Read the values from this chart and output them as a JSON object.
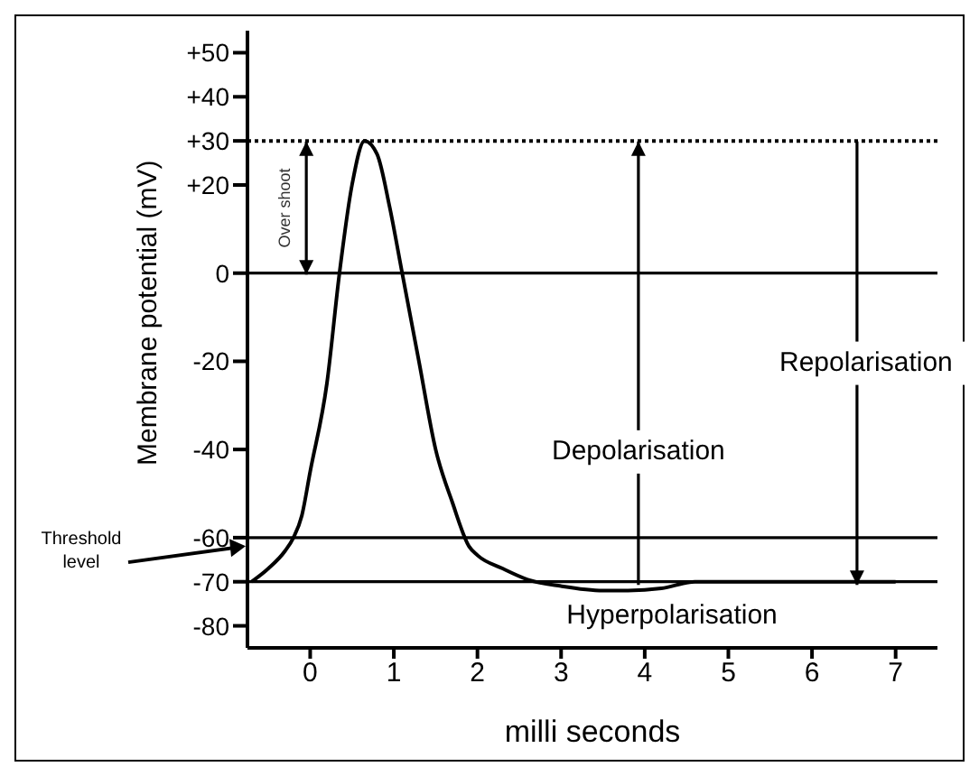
{
  "chart_data": {
    "type": "line",
    "xlabel": "milli seconds",
    "ylabel": "Membrane potential (mV)",
    "xlim": [
      -0.75,
      7.5
    ],
    "xticks": [
      0,
      1,
      2,
      3,
      4,
      5,
      6,
      7
    ],
    "ylim": [
      -85,
      55
    ],
    "yticks": [
      {
        "value": 50,
        "label": "+50"
      },
      {
        "value": 40,
        "label": "+40"
      },
      {
        "value": 30,
        "label": "+30"
      },
      {
        "value": 20,
        "label": "+20"
      },
      0,
      -20,
      -40,
      -60,
      -70,
      -80
    ],
    "marker": "none",
    "line_style": "solid",
    "series": [
      {
        "color": "#000000",
        "x": [
          -0.7,
          -0.5,
          -0.3,
          -0.2,
          -0.1,
          0,
          0.2,
          0.35,
          0.5,
          0.65,
          0.8,
          0.95,
          1.1,
          1.3,
          1.5,
          1.7,
          1.9,
          2.0,
          2.3,
          2.6,
          3.0,
          3.5,
          3.8,
          4.2,
          4.6,
          5.0,
          7.0
        ],
        "values": [
          -70,
          -67,
          -63,
          -60,
          -55,
          -45,
          -25,
          0,
          20,
          30,
          27,
          15,
          0,
          -20,
          -40,
          -52,
          -62,
          -64,
          -67,
          -69.5,
          -71,
          -72,
          -72,
          -71.5,
          -70,
          -70,
          -70
        ]
      }
    ],
    "ref_lines": [
      {
        "axis": "y",
        "value": 30,
        "line_style": "dotted",
        "color": "#000000"
      },
      {
        "axis": "y",
        "value": 0,
        "color": "#000000"
      },
      {
        "axis": "y",
        "value": -60,
        "label": "Threshold level",
        "color": "#000000"
      },
      {
        "axis": "y",
        "value": -70,
        "color": "#000000"
      }
    ],
    "annotations": [
      "Over shoot",
      "Depolarisation",
      "Repolarisation",
      "Hyperpolarisation"
    ]
  }
}
